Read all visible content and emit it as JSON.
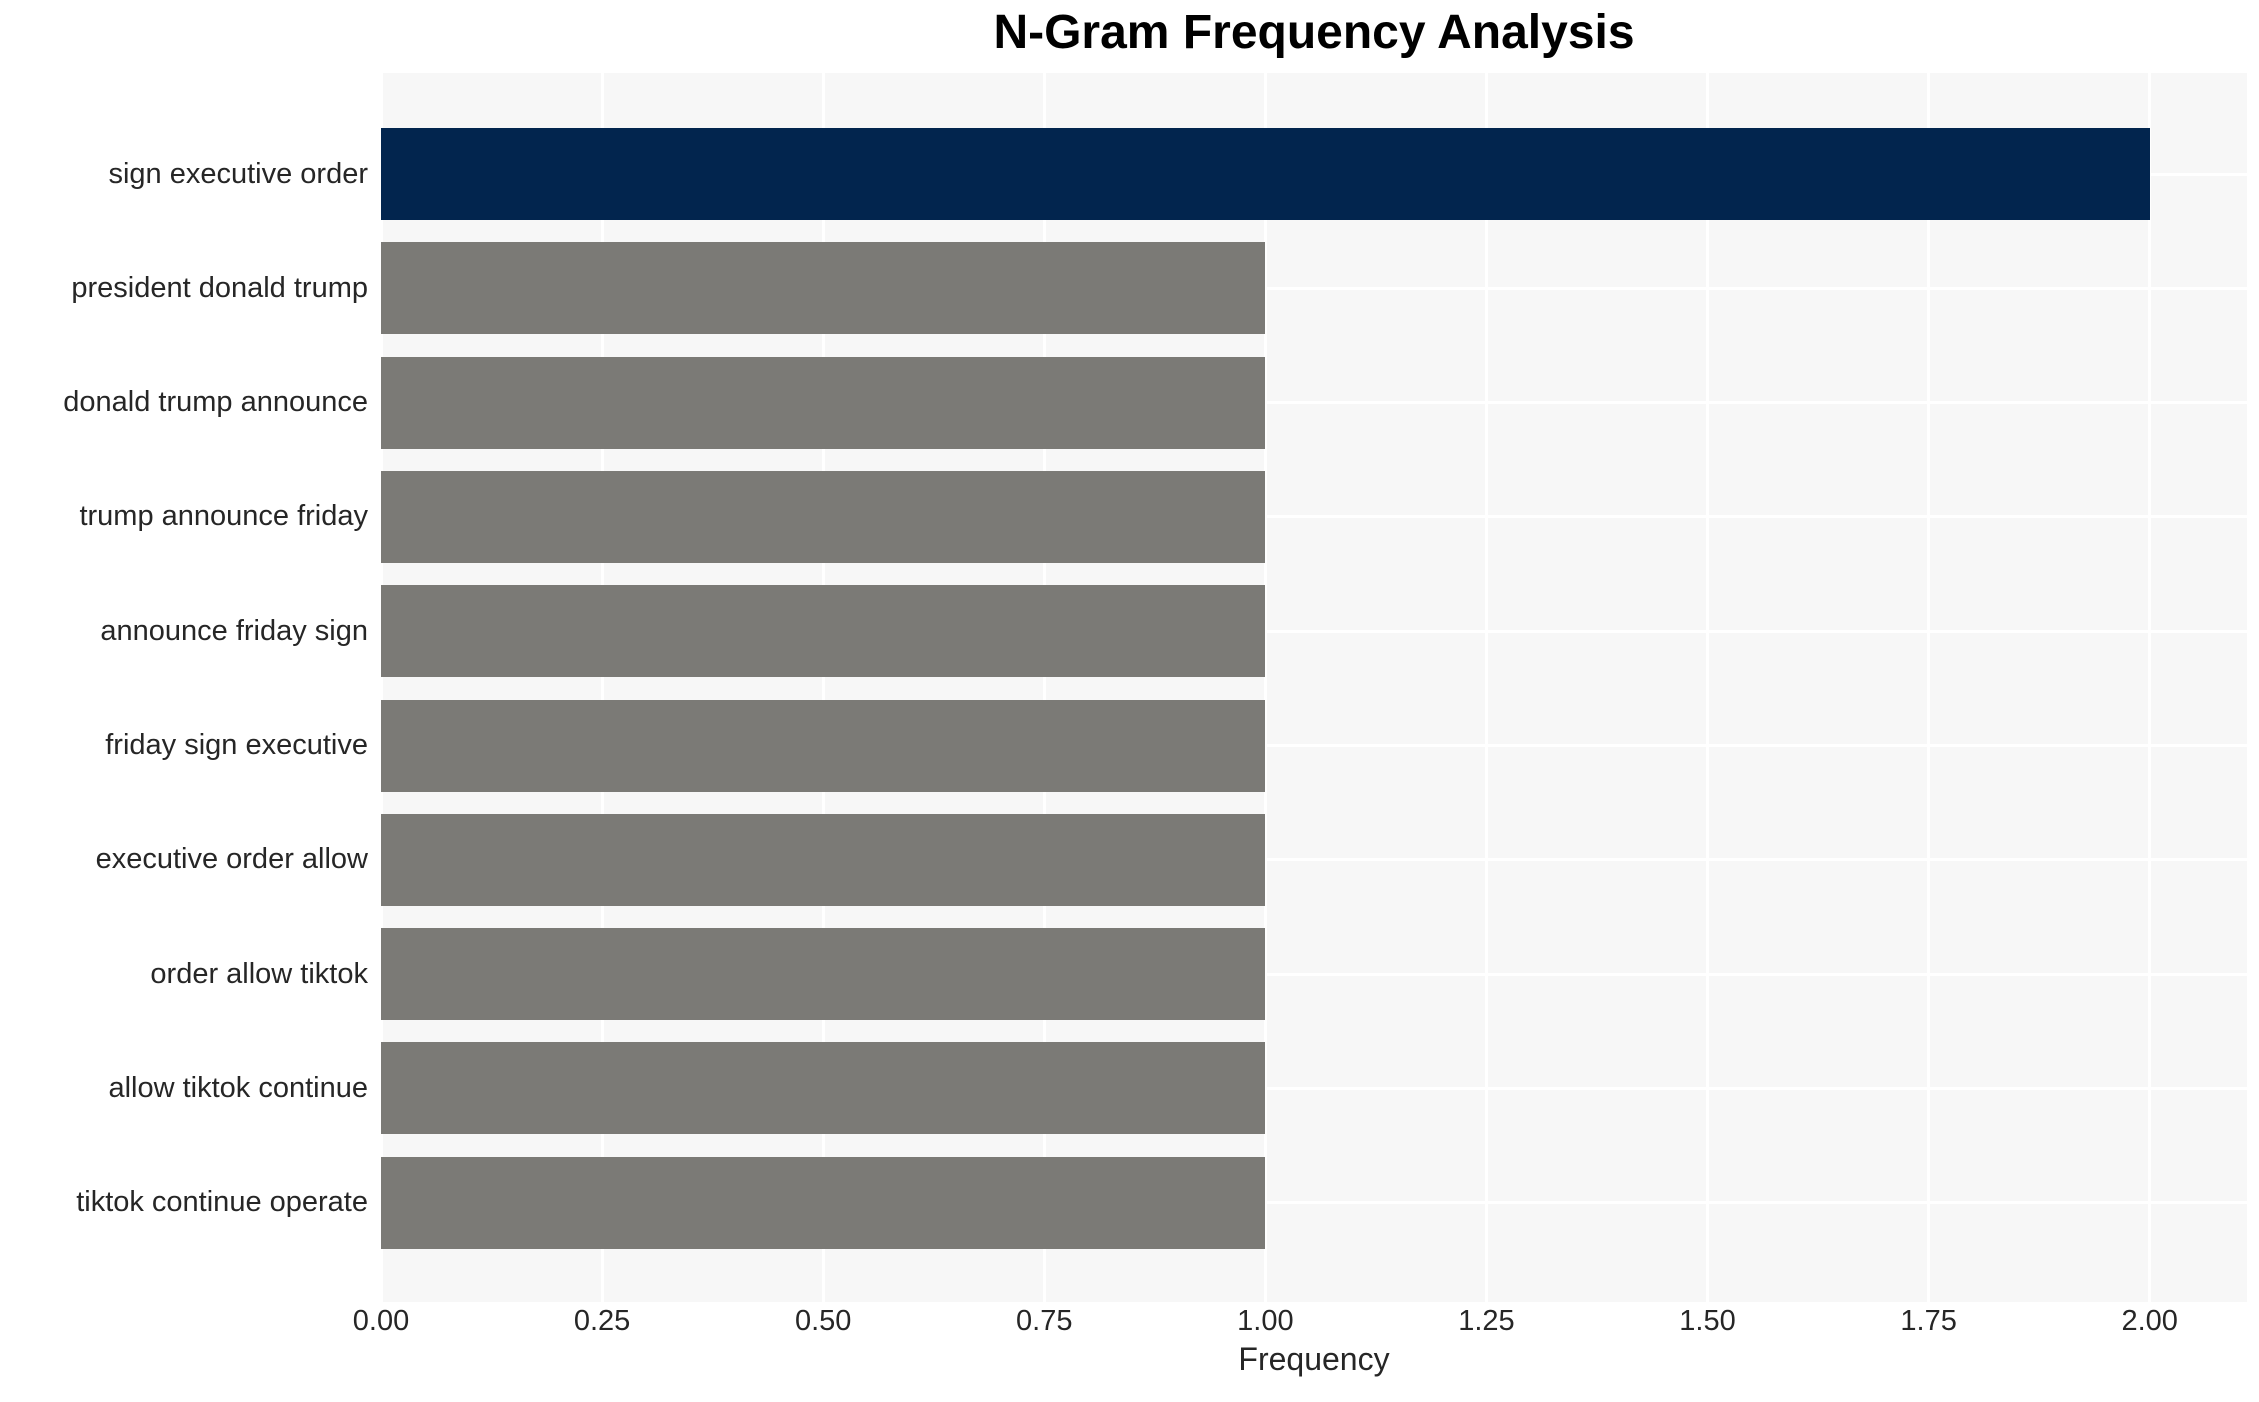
{
  "chart_data": {
    "type": "bar",
    "orientation": "horizontal",
    "title": "N-Gram Frequency Analysis",
    "xlabel": "Frequency",
    "ylabel": "",
    "categories": [
      "sign executive order",
      "president donald trump",
      "donald trump announce",
      "trump announce friday",
      "announce friday sign",
      "friday sign executive",
      "executive order allow",
      "order allow tiktok",
      "allow tiktok continue",
      "tiktok continue operate"
    ],
    "values": [
      2,
      1,
      1,
      1,
      1,
      1,
      1,
      1,
      1,
      1
    ],
    "xlim": [
      0,
      2.11
    ],
    "xticks": [
      0,
      0.25,
      0.5,
      0.75,
      1.0,
      1.25,
      1.5,
      1.75,
      2.0
    ],
    "xtick_labels": [
      "0.00",
      "0.25",
      "0.50",
      "0.75",
      "1.00",
      "1.25",
      "1.50",
      "1.75",
      "2.00"
    ],
    "grid": true,
    "legend": "none",
    "colors": {
      "bar_highlight": "#02254e",
      "bar_default": "#7b7a76",
      "plot_background": "#f7f7f7",
      "grid_line": "#ffffff",
      "tick_text": "#262626",
      "title_text": "#000000"
    }
  }
}
